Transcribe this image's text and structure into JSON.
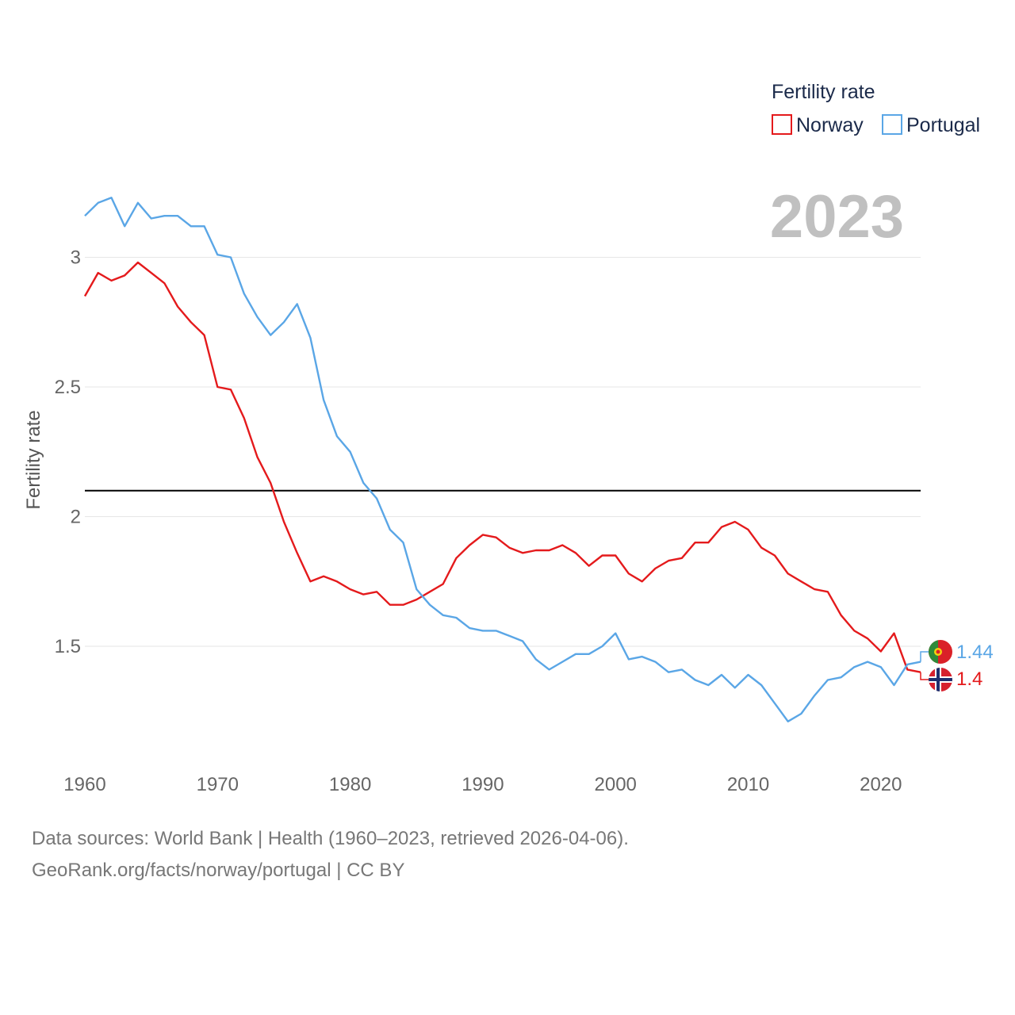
{
  "chart_data": {
    "type": "line",
    "title": "2023",
    "ylabel": "Fertility rate",
    "xlabel": "",
    "xlim": [
      1960,
      2023
    ],
    "ylim": [
      1.05,
      3.4
    ],
    "x_ticks": [
      1960,
      1970,
      1980,
      1990,
      2000,
      2010,
      2020
    ],
    "y_ticks": [
      1.5,
      2,
      2.5,
      3
    ],
    "y_tick_labels": [
      "1.5",
      "2",
      "2.5",
      "3"
    ],
    "reference_line": {
      "value": 2.1,
      "color": "#000000"
    },
    "legend": {
      "title": "Fertility rate",
      "placement": "top-right"
    },
    "x": [
      1960,
      1961,
      1962,
      1963,
      1964,
      1965,
      1966,
      1967,
      1968,
      1969,
      1970,
      1971,
      1972,
      1973,
      1974,
      1975,
      1976,
      1977,
      1978,
      1979,
      1980,
      1981,
      1982,
      1983,
      1984,
      1985,
      1986,
      1987,
      1988,
      1989,
      1990,
      1991,
      1992,
      1993,
      1994,
      1995,
      1996,
      1997,
      1998,
      1999,
      2000,
      2001,
      2002,
      2003,
      2004,
      2005,
      2006,
      2007,
      2008,
      2009,
      2010,
      2011,
      2012,
      2013,
      2014,
      2015,
      2016,
      2017,
      2018,
      2019,
      2020,
      2021,
      2022,
      2023
    ],
    "series": [
      {
        "name": "Norway",
        "color": "#e41a1c",
        "end_label": "1.4",
        "values": [
          2.85,
          2.94,
          2.91,
          2.93,
          2.98,
          2.94,
          2.9,
          2.81,
          2.75,
          2.7,
          2.5,
          2.49,
          2.38,
          2.23,
          2.13,
          1.98,
          1.86,
          1.75,
          1.77,
          1.75,
          1.72,
          1.7,
          1.71,
          1.66,
          1.66,
          1.68,
          1.71,
          1.74,
          1.84,
          1.89,
          1.93,
          1.92,
          1.88,
          1.86,
          1.87,
          1.87,
          1.89,
          1.86,
          1.81,
          1.85,
          1.85,
          1.78,
          1.75,
          1.8,
          1.83,
          1.84,
          1.9,
          1.9,
          1.96,
          1.98,
          1.95,
          1.88,
          1.85,
          1.78,
          1.75,
          1.72,
          1.71,
          1.62,
          1.56,
          1.53,
          1.48,
          1.55,
          1.41,
          1.4
        ]
      },
      {
        "name": "Portugal",
        "color": "#5aa6e6",
        "end_label": "1.44",
        "values": [
          3.16,
          3.21,
          3.23,
          3.12,
          3.21,
          3.15,
          3.16,
          3.16,
          3.12,
          3.12,
          3.01,
          3.0,
          2.86,
          2.77,
          2.7,
          2.75,
          2.82,
          2.69,
          2.45,
          2.31,
          2.25,
          2.13,
          2.07,
          1.95,
          1.9,
          1.72,
          1.66,
          1.62,
          1.61,
          1.57,
          1.56,
          1.56,
          1.54,
          1.52,
          1.45,
          1.41,
          1.44,
          1.47,
          1.47,
          1.5,
          1.55,
          1.45,
          1.46,
          1.44,
          1.4,
          1.41,
          1.37,
          1.35,
          1.39,
          1.34,
          1.39,
          1.35,
          1.28,
          1.21,
          1.24,
          1.31,
          1.37,
          1.38,
          1.42,
          1.44,
          1.42,
          1.35,
          1.43,
          1.44
        ]
      }
    ]
  },
  "footer": {
    "line1": "Data sources: World Bank | Health (1960–2023, retrieved 2026-04-06).",
    "line2": "GeoRank.org/facts/norway/portugal | CC BY"
  }
}
